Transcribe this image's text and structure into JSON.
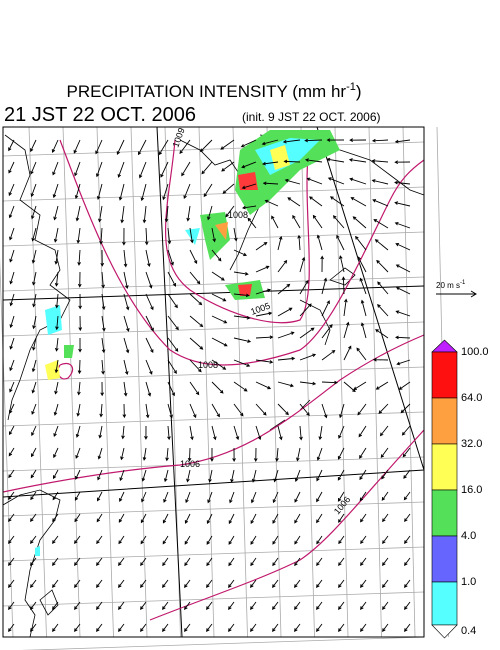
{
  "title": {
    "main": "PRECIPITATION INTENSITY (mm hr",
    "superscript": "-1",
    "close": ")"
  },
  "subtitle": {
    "valid_time": "21 JST 22 OCT. 2006",
    "init_time": "(init. 9 JST 22 OCT. 2006)"
  },
  "reference_vector": {
    "label": "20 m s",
    "superscript": "-1"
  },
  "colorbar": {
    "labels": [
      "100.0",
      "64.0",
      "32.0",
      "16.0",
      "4.0",
      "1.0",
      "0.4"
    ]
  },
  "isobars": {
    "labels": [
      "1009",
      "1008",
      "1005",
      "1008",
      "1006",
      "1006"
    ]
  }
}
